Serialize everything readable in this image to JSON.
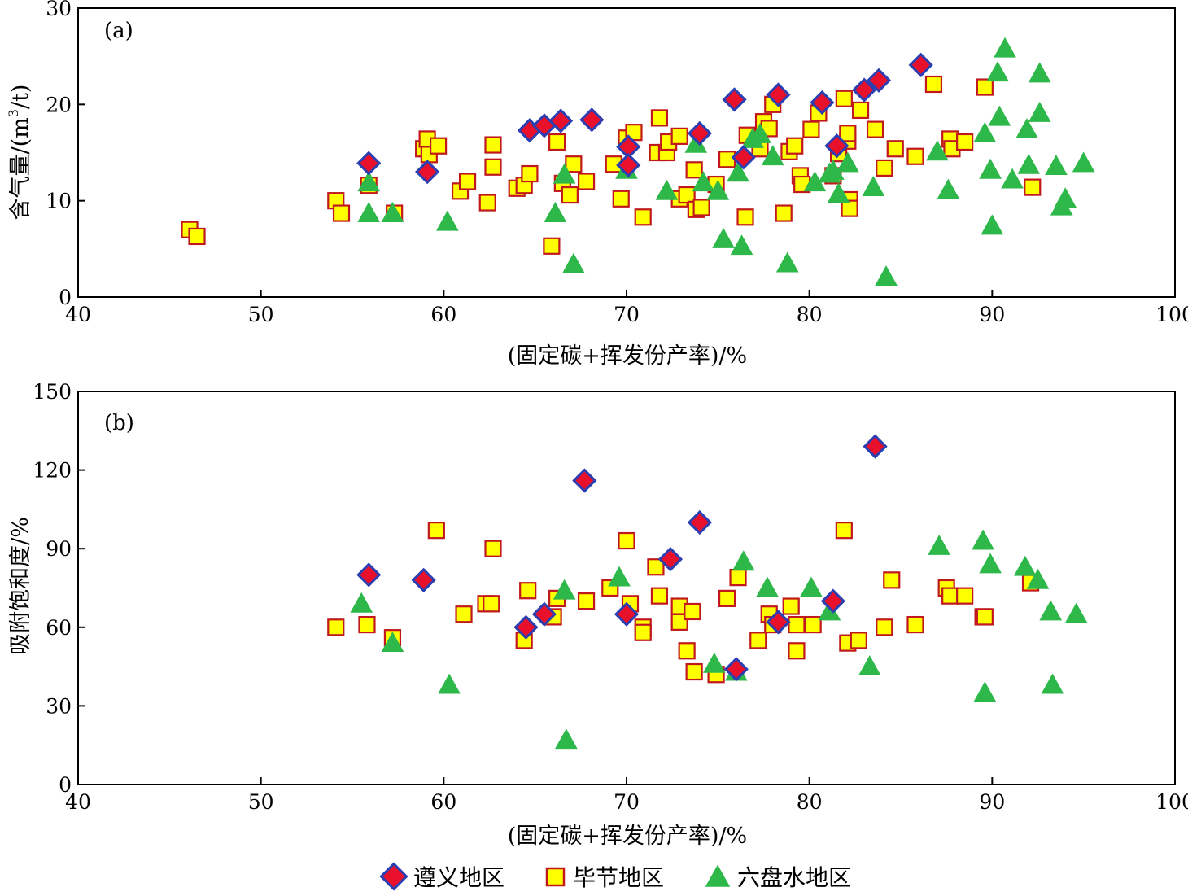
{
  "chart_data": [
    {
      "type": "scatter",
      "panel_label": "(a)",
      "xlabel": "(固定碳+挥发份产率)/%",
      "ylabel_main": "含气量/(m",
      "ylabel_sup": "3",
      "ylabel_tail": "/t)",
      "xlim": [
        40,
        100
      ],
      "ylim": [
        0,
        30
      ],
      "xticks": [
        40,
        50,
        60,
        70,
        80,
        90,
        100
      ],
      "yticks": [
        0,
        10,
        20,
        30
      ],
      "series": [
        {
          "name": "遵义地区",
          "points": [
            [
              55.9,
              13.9
            ],
            [
              59.1,
              13.0
            ],
            [
              64.7,
              17.3
            ],
            [
              65.5,
              17.8
            ],
            [
              66.4,
              18.3
            ],
            [
              68.1,
              18.4
            ],
            [
              70.1,
              15.6
            ],
            [
              70.1,
              13.7
            ],
            [
              74.0,
              17.0
            ],
            [
              75.9,
              20.5
            ],
            [
              76.4,
              14.5
            ],
            [
              78.3,
              21.0
            ],
            [
              80.7,
              20.2
            ],
            [
              81.5,
              15.7
            ],
            [
              83.0,
              21.5
            ],
            [
              83.8,
              22.5
            ],
            [
              86.1,
              24.1
            ]
          ]
        },
        {
          "name": "毕节地区",
          "points": [
            [
              46.1,
              7.0
            ],
            [
              46.5,
              6.3
            ],
            [
              54.1,
              10.0
            ],
            [
              54.4,
              8.7
            ],
            [
              55.9,
              11.6
            ],
            [
              57.3,
              8.7
            ],
            [
              58.9,
              15.4
            ],
            [
              59.1,
              16.4
            ],
            [
              59.2,
              14.8
            ],
            [
              59.7,
              15.7
            ],
            [
              60.9,
              11.0
            ],
            [
              61.3,
              12.0
            ],
            [
              62.4,
              9.8
            ],
            [
              62.7,
              13.5
            ],
            [
              62.7,
              15.8
            ],
            [
              64.0,
              11.3
            ],
            [
              64.4,
              11.6
            ],
            [
              64.7,
              12.8
            ],
            [
              65.9,
              5.3
            ],
            [
              66.2,
              16.1
            ],
            [
              66.5,
              11.8
            ],
            [
              66.9,
              10.6
            ],
            [
              67.1,
              13.8
            ],
            [
              67.8,
              12.0
            ],
            [
              69.3,
              13.8
            ],
            [
              69.7,
              10.2
            ],
            [
              70.0,
              16.5
            ],
            [
              70.4,
              17.1
            ],
            [
              70.9,
              8.3
            ],
            [
              71.7,
              15.0
            ],
            [
              71.8,
              18.6
            ],
            [
              72.2,
              15.0
            ],
            [
              72.3,
              16.1
            ],
            [
              72.9,
              16.7
            ],
            [
              72.9,
              10.2
            ],
            [
              73.3,
              10.6
            ],
            [
              73.7,
              13.2
            ],
            [
              73.8,
              9.1
            ],
            [
              74.1,
              9.3
            ],
            [
              74.9,
              11.7
            ],
            [
              75.5,
              14.3
            ],
            [
              76.5,
              8.3
            ],
            [
              76.6,
              16.8
            ],
            [
              77.3,
              15.4
            ],
            [
              77.5,
              18.2
            ],
            [
              77.8,
              17.5
            ],
            [
              78.0,
              20.0
            ],
            [
              78.6,
              8.7
            ],
            [
              78.9,
              15.1
            ],
            [
              79.2,
              15.7
            ],
            [
              79.5,
              12.6
            ],
            [
              79.6,
              11.7
            ],
            [
              80.1,
              17.4
            ],
            [
              80.5,
              19.1
            ],
            [
              81.3,
              12.6
            ],
            [
              81.6,
              14.9
            ],
            [
              81.9,
              20.6
            ],
            [
              82.1,
              16.2
            ],
            [
              82.1,
              17.0
            ],
            [
              82.2,
              10.1
            ],
            [
              82.2,
              9.2
            ],
            [
              82.8,
              19.4
            ],
            [
              83.6,
              17.4
            ],
            [
              84.1,
              13.4
            ],
            [
              84.7,
              15.4
            ],
            [
              85.8,
              14.6
            ],
            [
              86.8,
              22.1
            ],
            [
              87.7,
              16.4
            ],
            [
              87.8,
              15.4
            ],
            [
              88.5,
              16.1
            ],
            [
              89.6,
              21.8
            ],
            [
              92.2,
              11.4
            ]
          ]
        },
        {
          "name": "六盘水地区",
          "points": [
            [
              55.9,
              11.9
            ],
            [
              55.9,
              8.7
            ],
            [
              57.2,
              8.7
            ],
            [
              60.2,
              7.8
            ],
            [
              66.1,
              8.7
            ],
            [
              66.6,
              12.7
            ],
            [
              67.1,
              3.4
            ],
            [
              70.0,
              13.2
            ],
            [
              72.2,
              11.0
            ],
            [
              73.8,
              15.9
            ],
            [
              74.2,
              11.9
            ],
            [
              75.0,
              11.0
            ],
            [
              75.3,
              6.0
            ],
            [
              76.1,
              12.9
            ],
            [
              76.3,
              5.3
            ],
            [
              76.9,
              16.4
            ],
            [
              77.3,
              16.9
            ],
            [
              78.0,
              14.6
            ],
            [
              78.8,
              3.5
            ],
            [
              80.3,
              11.9
            ],
            [
              81.1,
              12.8
            ],
            [
              81.3,
              13.1
            ],
            [
              81.6,
              10.7
            ],
            [
              82.1,
              13.9
            ],
            [
              83.5,
              11.4
            ],
            [
              84.2,
              2.1
            ],
            [
              87.0,
              15.1
            ],
            [
              87.6,
              11.1
            ],
            [
              89.6,
              17.0
            ],
            [
              89.9,
              13.2
            ],
            [
              90.0,
              7.4
            ],
            [
              90.3,
              23.3
            ],
            [
              90.4,
              18.7
            ],
            [
              90.7,
              25.8
            ],
            [
              91.1,
              12.2
            ],
            [
              91.9,
              17.4
            ],
            [
              92.0,
              13.7
            ],
            [
              92.6,
              19.1
            ],
            [
              92.6,
              23.2
            ],
            [
              93.5,
              13.6
            ],
            [
              93.8,
              9.4
            ],
            [
              94.0,
              10.2
            ],
            [
              95.0,
              13.9
            ]
          ]
        }
      ]
    },
    {
      "type": "scatter",
      "panel_label": "(b)",
      "xlabel": "(固定碳+挥发份产率)/%",
      "ylabel": "吸附饱和度/%",
      "xlim": [
        40,
        100
      ],
      "ylim": [
        0,
        150
      ],
      "xticks": [
        40,
        50,
        60,
        70,
        80,
        90,
        100
      ],
      "yticks": [
        0,
        30,
        60,
        90,
        120,
        150
      ],
      "series": [
        {
          "name": "遵义地区",
          "points": [
            [
              55.9,
              80
            ],
            [
              58.9,
              78
            ],
            [
              64.5,
              60
            ],
            [
              65.5,
              65
            ],
            [
              67.7,
              116
            ],
            [
              70.0,
              65
            ],
            [
              72.4,
              86
            ],
            [
              74.0,
              100
            ],
            [
              76.0,
              44
            ],
            [
              78.3,
              62
            ],
            [
              81.3,
              70
            ],
            [
              83.6,
              129
            ]
          ]
        },
        {
          "name": "毕节地区",
          "points": [
            [
              54.1,
              60
            ],
            [
              55.8,
              61
            ],
            [
              57.2,
              56
            ],
            [
              59.6,
              97
            ],
            [
              61.1,
              65
            ],
            [
              62.3,
              69
            ],
            [
              62.6,
              69
            ],
            [
              62.7,
              90
            ],
            [
              64.4,
              55
            ],
            [
              64.6,
              74
            ],
            [
              66.0,
              64
            ],
            [
              66.2,
              71
            ],
            [
              67.8,
              70
            ],
            [
              69.1,
              75
            ],
            [
              70.0,
              93
            ],
            [
              70.2,
              69
            ],
            [
              70.9,
              60
            ],
            [
              70.9,
              58
            ],
            [
              71.6,
              83
            ],
            [
              71.8,
              72
            ],
            [
              72.9,
              62
            ],
            [
              72.9,
              68
            ],
            [
              73.3,
              51
            ],
            [
              73.6,
              66
            ],
            [
              73.7,
              43
            ],
            [
              74.9,
              42
            ],
            [
              75.5,
              71
            ],
            [
              76.1,
              79
            ],
            [
              77.2,
              55
            ],
            [
              77.8,
              65
            ],
            [
              78.0,
              61
            ],
            [
              79.0,
              68
            ],
            [
              79.3,
              61
            ],
            [
              79.3,
              51
            ],
            [
              80.2,
              61
            ],
            [
              81.9,
              97
            ],
            [
              82.1,
              54
            ],
            [
              82.7,
              55
            ],
            [
              84.1,
              60
            ],
            [
              84.5,
              78
            ],
            [
              85.8,
              61
            ],
            [
              87.5,
              75
            ],
            [
              87.7,
              72
            ],
            [
              88.5,
              72
            ],
            [
              89.5,
              64
            ],
            [
              89.6,
              64
            ],
            [
              92.1,
              77
            ]
          ]
        },
        {
          "name": "六盘水地区",
          "points": [
            [
              55.5,
              69
            ],
            [
              57.2,
              54
            ],
            [
              60.3,
              38
            ],
            [
              66.6,
              74
            ],
            [
              66.7,
              17
            ],
            [
              69.6,
              79
            ],
            [
              74.8,
              46
            ],
            [
              76.0,
              43
            ],
            [
              76.4,
              85
            ],
            [
              77.7,
              75
            ],
            [
              80.1,
              75
            ],
            [
              81.1,
              66
            ],
            [
              83.3,
              45
            ],
            [
              87.1,
              91
            ],
            [
              89.5,
              93
            ],
            [
              89.6,
              35
            ],
            [
              89.9,
              84
            ],
            [
              91.8,
              83
            ],
            [
              92.5,
              78
            ],
            [
              93.2,
              66
            ],
            [
              93.3,
              38
            ],
            [
              94.6,
              65
            ]
          ]
        }
      ]
    }
  ],
  "legend": {
    "items": [
      {
        "label": "遵义地区",
        "marker": "diamond",
        "fill": "#e8102a",
        "stroke": "#2b3fb3"
      },
      {
        "label": "毕节地区",
        "marker": "square",
        "fill": "#ffff00",
        "stroke": "#c0181c"
      },
      {
        "label": "六盘水地区",
        "marker": "triangle",
        "fill": "#2eb84a",
        "stroke": "#2eb84a"
      }
    ]
  }
}
